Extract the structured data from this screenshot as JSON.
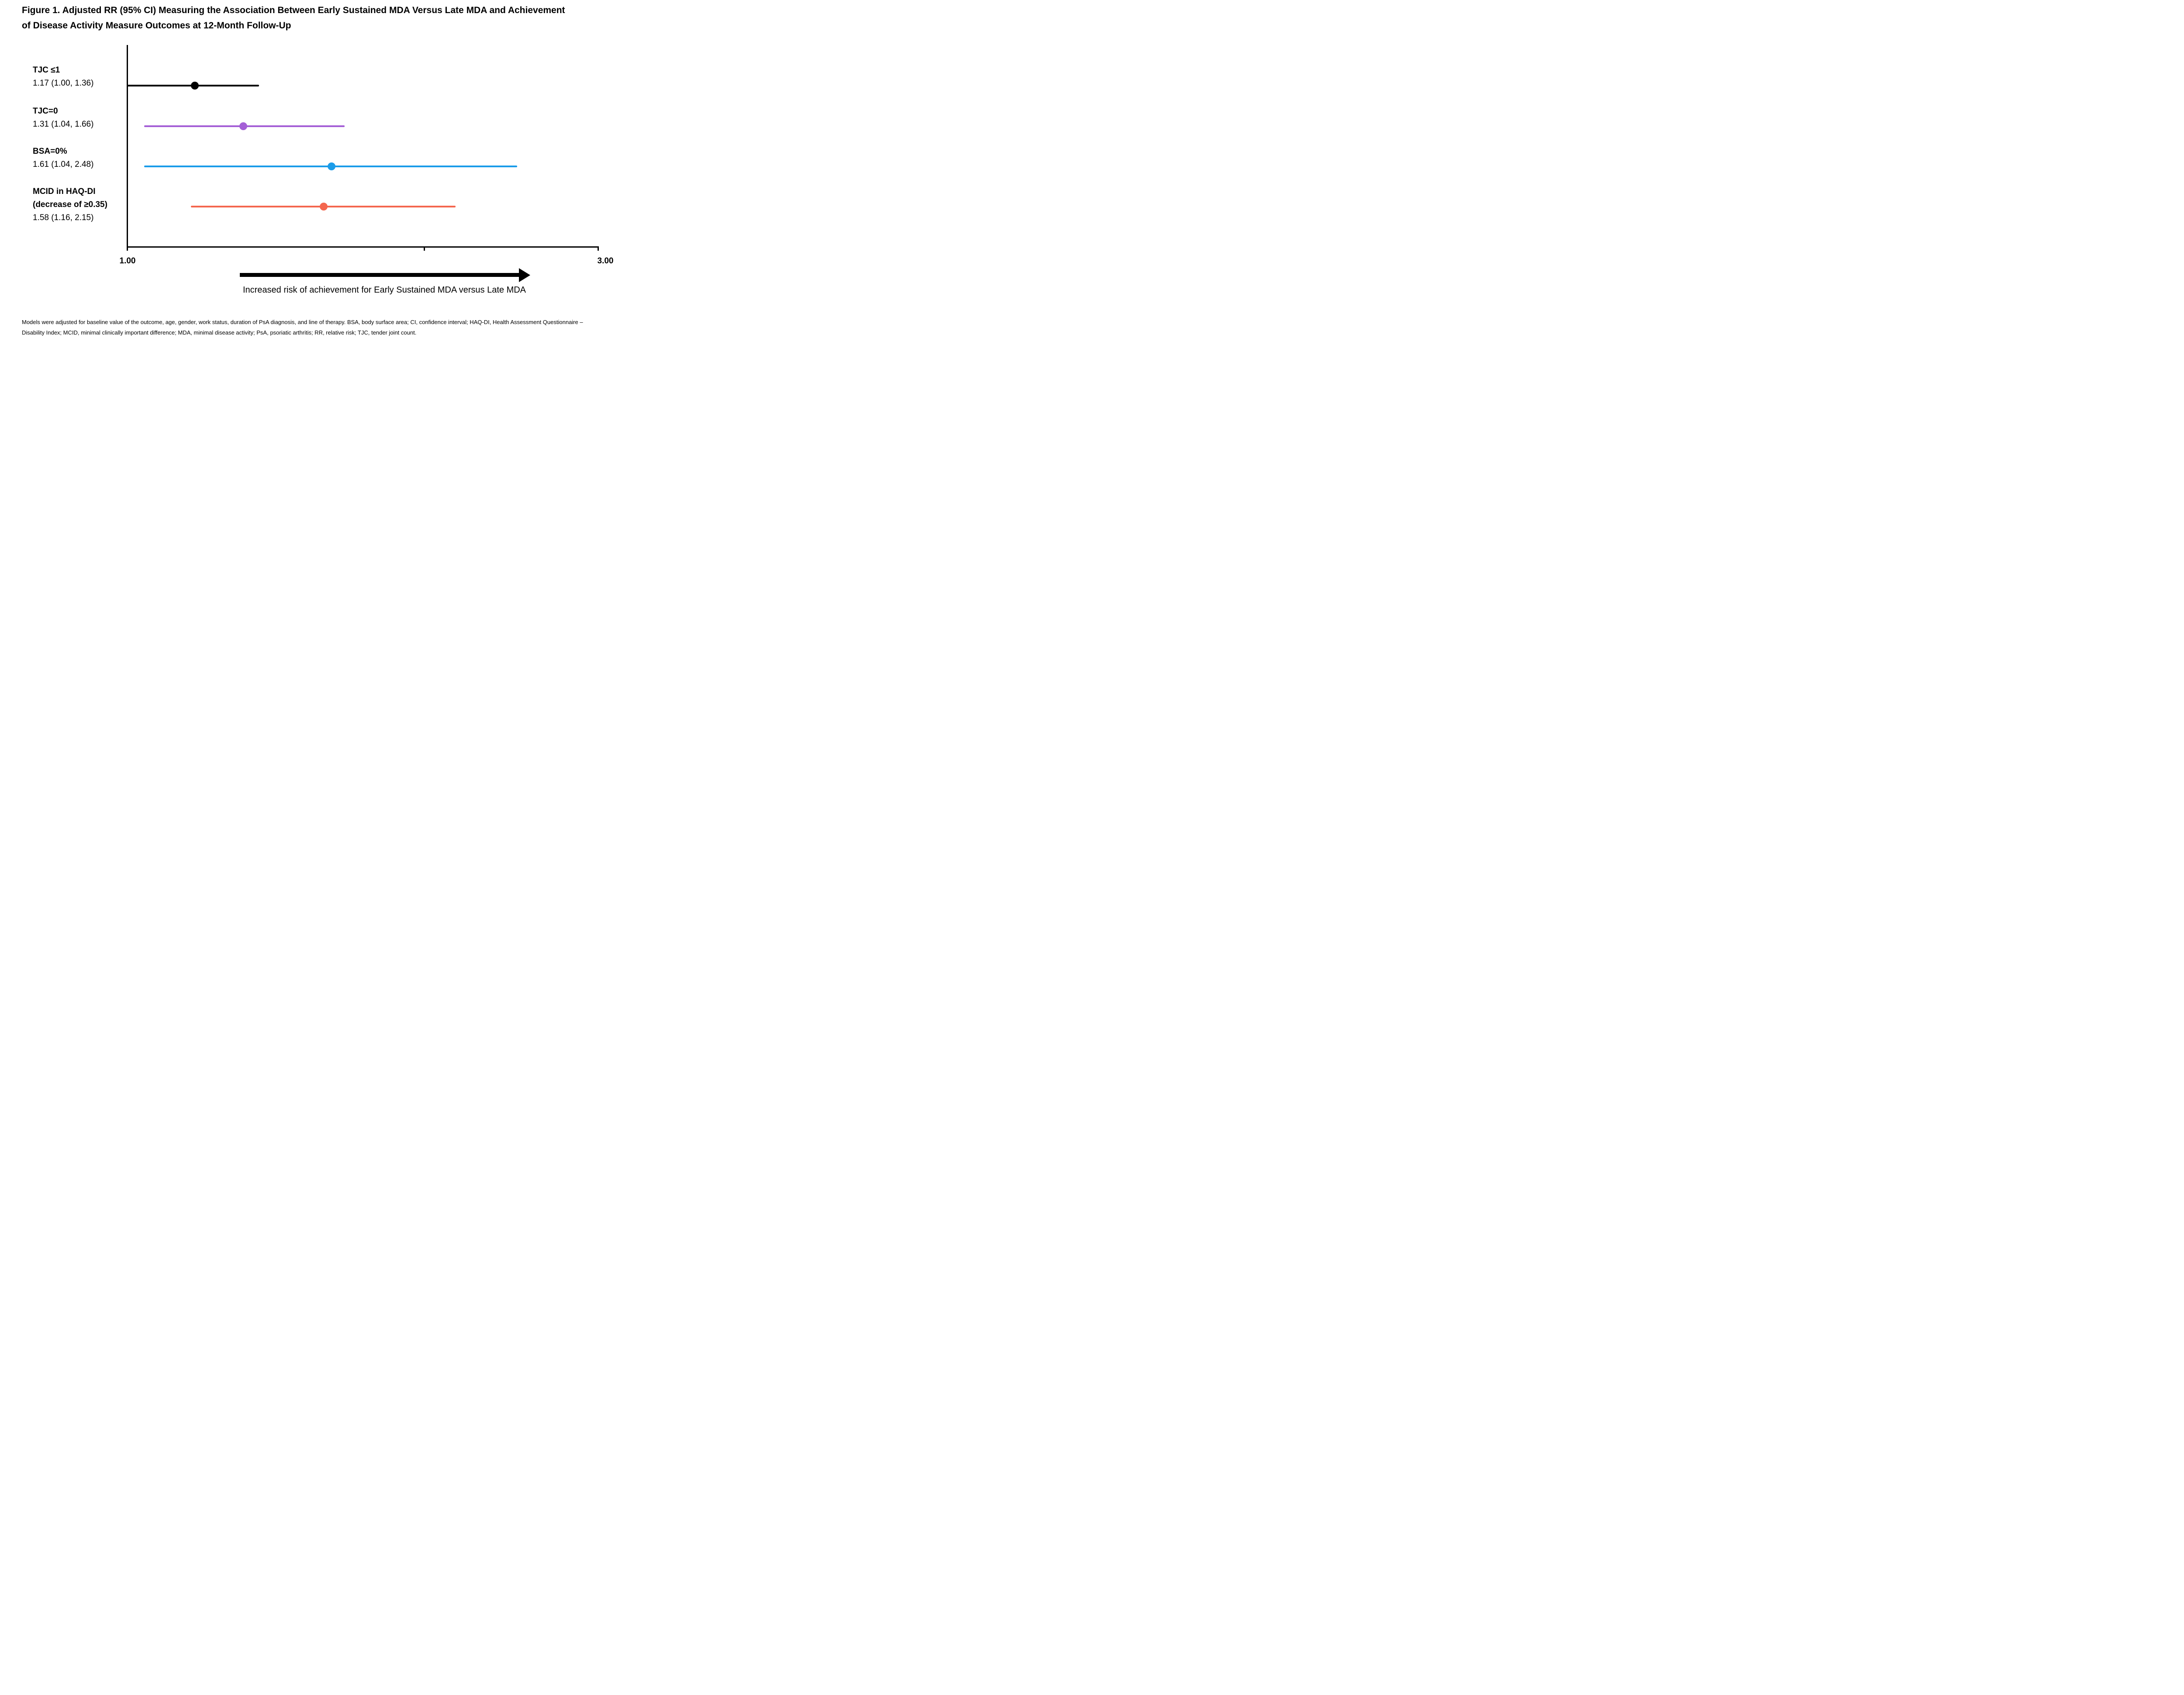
{
  "title": {
    "line1": "Figure 1. Adjusted RR (95% CI) Measuring the Association Between Early Sustained MDA Versus Late MDA and Achievement",
    "line2": "of Disease Activity Measure Outcomes at 12-Month Follow-Up"
  },
  "chart_data": {
    "type": "scatter",
    "subtype": "forest-plot",
    "title": "Adjusted RR (95% CI) Measuring the Association Between Early Sustained MDA Versus Late MDA and Achievement of Disease Activity Measure Outcomes at 12-Month Follow-Up",
    "x_scale": "log",
    "x_axis": {
      "min": 1.0,
      "max": 3.0,
      "ticks": [
        1.0,
        2.0,
        3.0
      ],
      "tick_labels": [
        "1.00",
        "3.00"
      ],
      "min_label": "1.00",
      "max_label": "3.00"
    },
    "grid": false,
    "legend": "none",
    "rows": [
      {
        "label_lines": [
          "TJC ≤1"
        ],
        "estimate_label": "1.17 (1.00, 1.36)",
        "estimate": 1.17,
        "ci_lower": 1.0,
        "ci_upper": 1.36,
        "color": "#000000"
      },
      {
        "label_lines": [
          "TJC=0"
        ],
        "estimate_label": "1.31 (1.04, 1.66)",
        "estimate": 1.31,
        "ci_lower": 1.04,
        "ci_upper": 1.66,
        "color": "#A45FD6"
      },
      {
        "label_lines": [
          "BSA=0%"
        ],
        "estimate_label": "1.61 (1.04, 2.48)",
        "estimate": 1.61,
        "ci_lower": 1.04,
        "ci_upper": 2.48,
        "color": "#1B9CE9"
      },
      {
        "label_lines": [
          "MCID in HAQ-DI",
          "(decrease of ≥0.35)"
        ],
        "estimate_label": "1.58 (1.16, 2.15)",
        "estimate": 1.58,
        "ci_lower": 1.16,
        "ci_upper": 2.15,
        "color": "#F4664E"
      }
    ],
    "arrow_label": "Increased risk of achievement for Early Sustained MDA versus Late MDA",
    "colors": {
      "axis": "#000000",
      "row1": "#000000",
      "row2": "#A45FD6",
      "row3": "#1B9CE9",
      "row4": "#F4664E"
    }
  },
  "footnote": {
    "line1": "Models were adjusted for baseline value of the outcome, age, gender, work status, duration of PsA diagnosis, and line of therapy. BSA, body surface area; CI, confidence interval; HAQ-DI, Health Assessment Questionnaire –",
    "line2": "Disability Index; MCID, minimal clinically important difference; MDA, minimal disease activity; PsA, psoriatic arthritis; RR, relative risk; TJC, tender joint count."
  }
}
